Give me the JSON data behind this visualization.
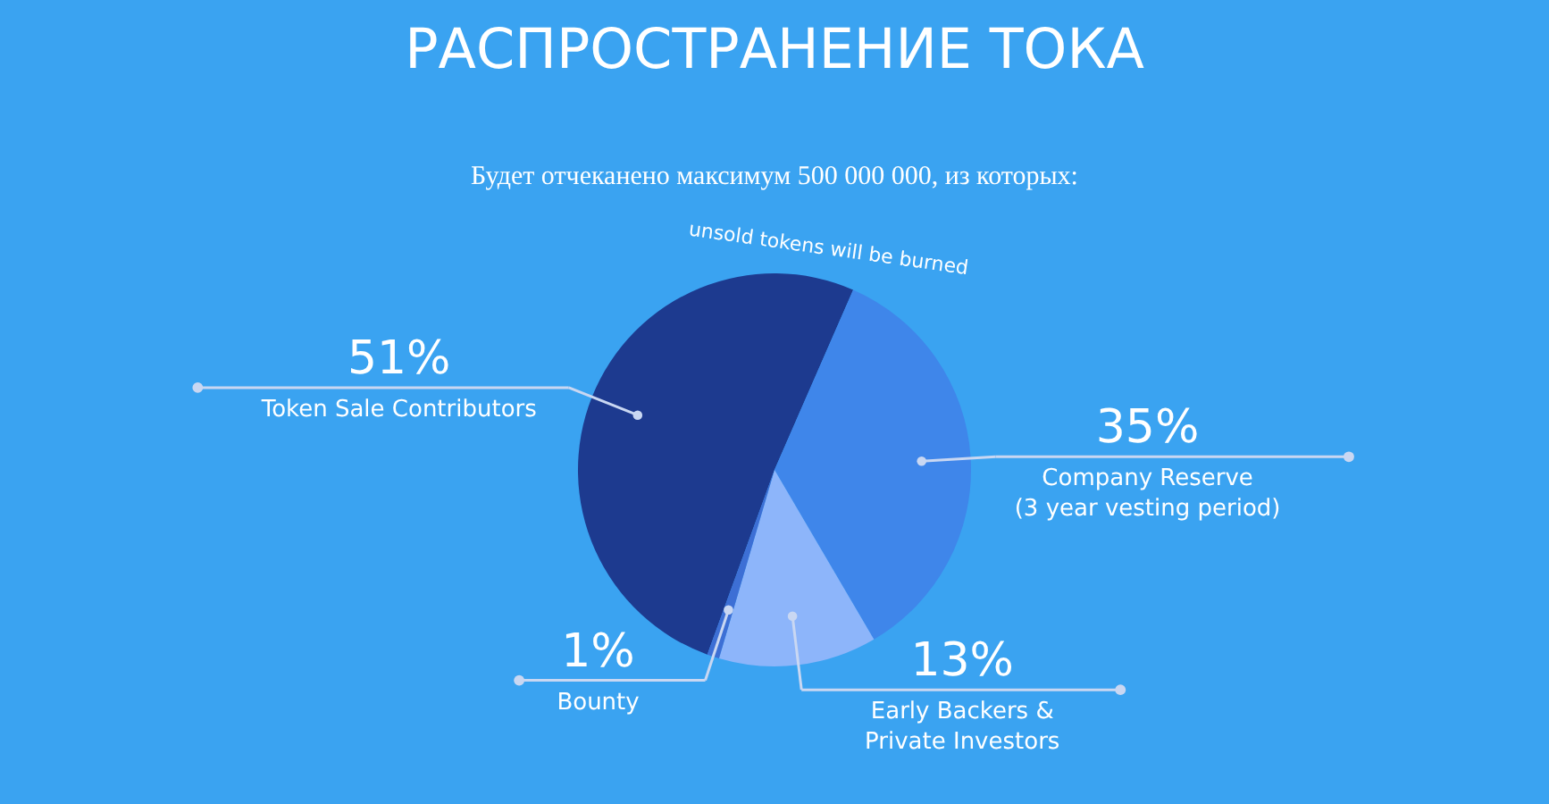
{
  "chart_data": {
    "type": "pie",
    "title": "РАСПРОСТРАНЕНИЕ ТОКА",
    "subtitle": "Будет отчеканено максимум 500 000 000, из которых:",
    "categories": [
      "Token Sale Contributors",
      "Company Reserve\n(3 year vesting period)",
      "Early Backers &\nPrivate Investors",
      "Bounty"
    ],
    "values": [
      51,
      35,
      13,
      1
    ],
    "colors": [
      "#1d3a8f",
      "#3f86ea",
      "#8db5fa",
      "#3d6fd5"
    ],
    "value_labels": [
      "51%",
      "35%",
      "13%",
      "1%"
    ],
    "annotations": [
      "unsold tokens will be burned"
    ]
  }
}
